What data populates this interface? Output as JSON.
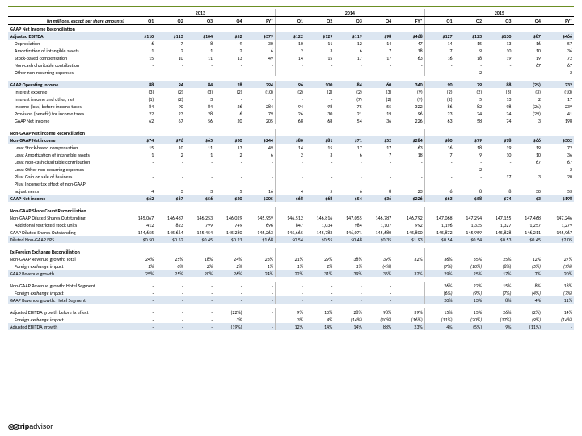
{
  "meta": {
    "units_note": "(in millions, except  per share amounts)"
  },
  "years": [
    "2013",
    "2014",
    "2015"
  ],
  "cols": [
    "Q1",
    "Q2",
    "Q3",
    "Q4",
    "FY*",
    "Q1",
    "Q2",
    "Q3",
    "Q4",
    "FY*",
    "Q1",
    "Q2",
    "Q3",
    "Q4",
    "FY*"
  ],
  "sections": [
    {
      "type": "header",
      "label": "GAAP Net Income Reconciliation"
    },
    {
      "type": "row",
      "hl": true,
      "bold": true,
      "label": "Adjusted EBITDA",
      "v": [
        "$110",
        "$113",
        "$104",
        "$52",
        "$379",
        "$122",
        "$129",
        "$119",
        "$98",
        "$468",
        "$127",
        "$123",
        "$130",
        "$87",
        "$466"
      ]
    },
    {
      "type": "row",
      "indent": 1,
      "label": "Depreciation",
      "v": [
        "6",
        "7",
        "8",
        "9",
        "30",
        "10",
        "11",
        "12",
        "14",
        "47",
        "14",
        "15",
        "13",
        "16",
        "57"
      ]
    },
    {
      "type": "row",
      "indent": 1,
      "label": "Amortization of intangible assets",
      "v": [
        "1",
        "2",
        "1",
        "2",
        "6",
        "2",
        "3",
        "6",
        "7",
        "18",
        "7",
        "9",
        "10",
        "10",
        "36"
      ]
    },
    {
      "type": "row",
      "indent": 1,
      "label": "Stock-based compensation",
      "v": [
        "15",
        "10",
        "11",
        "13",
        "49",
        "14",
        "15",
        "17",
        "17",
        "63",
        "16",
        "18",
        "19",
        "19",
        "72"
      ]
    },
    {
      "type": "row",
      "indent": 1,
      "label": "Non-cash charitable contribution",
      "v": [
        "-",
        "-",
        "-",
        "-",
        "-",
        "-",
        "-",
        "-",
        "-",
        "-",
        "-",
        "-",
        "-",
        "67",
        "67"
      ]
    },
    {
      "type": "row",
      "indent": 1,
      "label": "Other non-recurring expenses",
      "v": [
        "-",
        "-",
        "-",
        "-",
        "-",
        "-",
        "-",
        "-",
        "-",
        "-",
        "-",
        "2",
        "-",
        "-",
        "2"
      ]
    },
    {
      "type": "space"
    },
    {
      "type": "row",
      "hl": true,
      "bold": true,
      "label": "GAAP Operating Income",
      "v": [
        "88",
        "94",
        "84",
        "28",
        "294",
        "96",
        "100",
        "84",
        "60",
        "340",
        "90",
        "79",
        "88",
        "(25)",
        "232"
      ]
    },
    {
      "type": "row",
      "indent": 1,
      "label": "Interest expense",
      "v": [
        "(3)",
        "(2)",
        "(3)",
        "(2)",
        "(10)",
        "(2)",
        "(2)",
        "(2)",
        "(3)",
        "(9)",
        "(2)",
        "(2)",
        "(3)",
        "(3)",
        "(10)"
      ]
    },
    {
      "type": "row",
      "indent": 1,
      "label": "Interest income and other, net",
      "v": [
        "(1)",
        "(2)",
        "3",
        "-",
        "-",
        "-",
        "-",
        "(7)",
        "(2)",
        "(9)",
        "(2)",
        "5",
        "13",
        "2",
        "17"
      ]
    },
    {
      "type": "row",
      "indent": 1,
      "label": "Income (loss) before income taxes",
      "v": [
        "84",
        "90",
        "84",
        "26",
        "284",
        "94",
        "98",
        "75",
        "55",
        "322",
        "86",
        "82",
        "98",
        "(26)",
        "239"
      ]
    },
    {
      "type": "row",
      "indent": 1,
      "label": "Provision (benefit) for income taxes",
      "v": [
        "22",
        "23",
        "28",
        "6",
        "79",
        "26",
        "30",
        "21",
        "19",
        "96",
        "23",
        "24",
        "24",
        "(29)",
        "41"
      ]
    },
    {
      "type": "row",
      "indent": 1,
      "label": "GAAP Net income",
      "v": [
        "62",
        "67",
        "56",
        "20",
        "205",
        "68",
        "68",
        "54",
        "36",
        "226",
        "63",
        "58",
        "74",
        "3",
        "198"
      ]
    },
    {
      "type": "space"
    },
    {
      "type": "header",
      "label": "Non-GAAP Net income Reconciliation"
    },
    {
      "type": "row",
      "hl": true,
      "bold": true,
      "label": "Non-GAAP Net income",
      "v": [
        "$74",
        "$76",
        "$65",
        "$30",
        "$244",
        "$80",
        "$81",
        "$71",
        "$52",
        "$284",
        "$80",
        "$79",
        "$78",
        "$66",
        "$302"
      ]
    },
    {
      "type": "row",
      "indent": 1,
      "label": "Less: Stock-based compensation",
      "v": [
        "15",
        "10",
        "11",
        "13",
        "49",
        "14",
        "15",
        "17",
        "17",
        "63",
        "16",
        "18",
        "19",
        "19",
        "72"
      ]
    },
    {
      "type": "row",
      "indent": 1,
      "label": "Less: Amortization of intangible assets",
      "v": [
        "1",
        "2",
        "1",
        "2",
        "6",
        "2",
        "3",
        "6",
        "7",
        "18",
        "7",
        "9",
        "10",
        "10",
        "36"
      ]
    },
    {
      "type": "row",
      "indent": 1,
      "label": "Less: Non-cash charitable contribution",
      "v": [
        "-",
        "-",
        "-",
        "-",
        "-",
        "-",
        "-",
        "-",
        "-",
        "-",
        "-",
        "-",
        "-",
        "67",
        "67"
      ]
    },
    {
      "type": "row",
      "indent": 1,
      "label": "Less: Other non-recurring expenses",
      "v": [
        "-",
        "-",
        "-",
        "-",
        "-",
        "-",
        "-",
        "-",
        "-",
        "-",
        "-",
        "2",
        "-",
        "-",
        "2"
      ]
    },
    {
      "type": "row",
      "indent": 1,
      "label": "Plus: Gain on sale of business",
      "v": [
        "-",
        "-",
        "-",
        "-",
        "-",
        "-",
        "-",
        "-",
        "-",
        "-",
        "-",
        "-",
        "17",
        "3",
        "20"
      ]
    },
    {
      "type": "row",
      "indent": 1,
      "label": "Plus: Income tax effect of non-GAAP",
      "v": [
        "",
        "",
        "",
        "",
        "",
        "",
        "",
        "",
        "",
        "",
        "",
        "",
        "",
        "",
        ""
      ]
    },
    {
      "type": "row",
      "indent": 1,
      "label": "adjustments",
      "v": [
        "4",
        "3",
        "3",
        "5",
        "16",
        "4",
        "5",
        "6",
        "8",
        "23",
        "6",
        "8",
        "8",
        "30",
        "53"
      ]
    },
    {
      "type": "row",
      "hl": true,
      "bold": true,
      "label": "GAAP Net income",
      "v": [
        "$62",
        "$67",
        "$56",
        "$20",
        "$205",
        "$68",
        "$68",
        "$54",
        "$36",
        "$226",
        "$63",
        "$58",
        "$74",
        "$3",
        "$198"
      ]
    },
    {
      "type": "space"
    },
    {
      "type": "header",
      "label": "Non-GAAP Share Count Reconciliation"
    },
    {
      "type": "row",
      "label": "Non-GAAP Diluted Shares Outstanding",
      "v": [
        "145,067",
        "146,487",
        "146,253",
        "146,029",
        "145,959",
        "146,512",
        "146,816",
        "147,055",
        "146,787",
        "146,792",
        "147,068",
        "147,294",
        "147,155",
        "147,468",
        "147,246"
      ]
    },
    {
      "type": "row",
      "indent": 1,
      "label": "Additional restricted stock units",
      "v": [
        "412",
        "823",
        "799",
        "749",
        "696",
        "847",
        "1,034",
        "984",
        "1,107",
        "992",
        "1,196",
        "1,335",
        "1,327",
        "1,257",
        "1,279"
      ]
    },
    {
      "type": "row",
      "label": "GAAP Diluted Shares Outstanding",
      "v": [
        "144,655",
        "145,664",
        "145,454",
        "145,280",
        "145,263",
        "145,665",
        "145,782",
        "146,071",
        "145,680",
        "145,800",
        "145,872",
        "145,959",
        "145,828",
        "146,211",
        "145,967"
      ]
    },
    {
      "type": "row",
      "hl": true,
      "label": "Diluted Non-GAAP EPS",
      "v": [
        "$0.50",
        "$0.52",
        "$0.45",
        "$0.21",
        "$1.68",
        "$0.54",
        "$0.55",
        "$0.48",
        "$0.35",
        "$1.93",
        "$0.54",
        "$0.54",
        "$0.53",
        "$0.45",
        "$2.05"
      ]
    },
    {
      "type": "space"
    },
    {
      "type": "header",
      "label": "Ex-Foreign Exchange Reconciliation"
    },
    {
      "type": "row",
      "label": "Non-GAAP Revenue growth: Total",
      "v": [
        "24%",
        "25%",
        "18%",
        "24%",
        "23%",
        "21%",
        "29%",
        "38%",
        "39%",
        "32%",
        "36%",
        "35%",
        "25%",
        "12%",
        "27%"
      ]
    },
    {
      "type": "row",
      "indent": 1,
      "label": "Foreign exchange impact",
      "italic": true,
      "v": [
        "1%",
        "0%",
        "2%",
        "2%",
        "1%",
        "1%",
        "2%",
        "1%",
        "(4%)",
        "",
        "(7%)",
        "(10%)",
        "(8%)",
        "(5%)",
        "(7%)"
      ]
    },
    {
      "type": "row",
      "hl": true,
      "label": "GAAP Revenue growth",
      "v": [
        "25%",
        "25%",
        "20%",
        "26%",
        "24%",
        "22%",
        "31%",
        "39%",
        "35%",
        "32%",
        "29%",
        "25%",
        "17%",
        "7%",
        "20%"
      ]
    },
    {
      "type": "space"
    },
    {
      "type": "row",
      "label": "Non-GAAP Revenue growth: Hotel Segment",
      "v": [
        "-",
        "-",
        "-",
        "-",
        "-",
        "-",
        "-",
        "-",
        "-",
        "",
        "26%",
        "22%",
        "15%",
        "8%",
        "18%"
      ]
    },
    {
      "type": "row",
      "indent": 1,
      "label": "Foreign exchange impact",
      "italic": true,
      "v": [
        "-",
        "-",
        "-",
        "-",
        "-",
        "-",
        "-",
        "-",
        "-",
        "",
        "(6%)",
        "(9%)",
        "(7%)",
        "(4%)",
        "(7%)"
      ]
    },
    {
      "type": "row",
      "hl": true,
      "label": "GAAP Revenue growth: Hotel Segment",
      "v": [
        "-",
        "-",
        "-",
        "-",
        "-",
        "-",
        "-",
        "-",
        "-",
        "",
        "20%",
        "13%",
        "8%",
        "4%",
        "11%"
      ]
    },
    {
      "type": "space"
    },
    {
      "type": "row",
      "label": "Adjusted EBITDA growth before fx effect",
      "v": [
        "-",
        "-",
        "-",
        "(22%)",
        "-",
        "9%",
        "10%",
        "28%",
        "98%",
        "39%",
        "15%",
        "15%",
        "26%",
        "(2%)",
        "14%"
      ]
    },
    {
      "type": "row",
      "indent": 1,
      "label": "Foreign exchange impact",
      "italic": true,
      "v": [
        "-",
        "-",
        "-",
        "3%",
        "",
        "3%",
        "4%",
        "(14%)",
        "(10%)",
        "(16%)",
        "(11%)",
        "(20%)",
        "(17%)",
        "(9%)",
        "(14%)"
      ]
    },
    {
      "type": "row",
      "hl": true,
      "label": "Adjusted EBITDA growth",
      "v": [
        "-",
        "-",
        "-",
        "(19%)",
        "-",
        "12%",
        "14%",
        "14%",
        "88%",
        "23%",
        "4%",
        "(5%)",
        "9%",
        "(11%)",
        "-"
      ]
    }
  ],
  "logo": {
    "brand": "trip",
    "suffix": "advisor"
  }
}
